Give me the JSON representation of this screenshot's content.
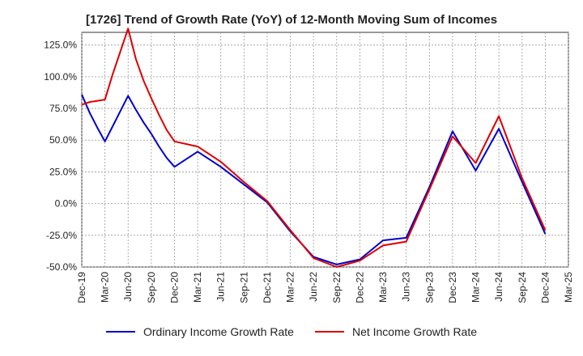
{
  "chart_data": {
    "type": "line",
    "title": "[1726]  Trend of Growth Rate (YoY) of 12-Month Moving Sum of Incomes",
    "xlabel": "",
    "ylabel": "",
    "x_ticks": [
      "Dec-19",
      "Mar-20",
      "Jun-20",
      "Sep-20",
      "Dec-20",
      "Mar-21",
      "Jun-21",
      "Sep-21",
      "Dec-21",
      "Mar-22",
      "Jun-22",
      "Sep-22",
      "Dec-22",
      "Mar-23",
      "Jun-23",
      "Sep-23",
      "Dec-23",
      "Mar-24",
      "Jun-24",
      "Sep-24",
      "Dec-24",
      "Mar-25"
    ],
    "y_ticks": [
      "125.0%",
      "100.0%",
      "75.0%",
      "50.0%",
      "25.0%",
      "0.0%",
      "-25.0%",
      "-50.0%"
    ],
    "y_tick_values": [
      125,
      100,
      75,
      50,
      25,
      0,
      -25,
      -50
    ],
    "ylim": [
      -50,
      135
    ],
    "grid": true,
    "legend_position": "bottom",
    "x": [
      "Dec-19",
      "Jan-20",
      "Feb-20",
      "Mar-20",
      "Apr-20",
      "May-20",
      "Jun-20",
      "Jul-20",
      "Aug-20",
      "Sep-20",
      "Oct-20",
      "Nov-20",
      "Dec-20",
      "Mar-21",
      "Jun-21",
      "Sep-21",
      "Dec-21",
      "Mar-22",
      "Jun-22",
      "Sep-22",
      "Dec-22",
      "Mar-23",
      "Jun-23",
      "Sep-23",
      "Dec-23",
      "Mar-24",
      "Jun-24",
      "Sep-24",
      "Dec-24"
    ],
    "series": [
      {
        "name": "Ordinary Income Growth Rate",
        "color": "#0000cc",
        "values": [
          86,
          72,
          60,
          49,
          61,
          73,
          85,
          74,
          64,
          55,
          45,
          36,
          29,
          41,
          29,
          15,
          1,
          -22,
          -42,
          -48,
          -44,
          -29,
          -27,
          13,
          57,
          26,
          59,
          17,
          -24
        ]
      },
      {
        "name": "Net Income Growth Rate",
        "color": "#dd0000",
        "values": [
          78,
          80,
          81,
          82,
          102,
          120,
          138,
          114,
          97,
          83,
          70,
          58,
          49,
          45,
          33,
          17,
          2,
          -21,
          -43,
          -50,
          -45,
          -33,
          -30,
          11,
          53,
          32,
          69,
          20,
          -21
        ]
      }
    ]
  },
  "colors": {
    "grid": "#999999",
    "axis": "#333333",
    "background": "#ffffff"
  }
}
